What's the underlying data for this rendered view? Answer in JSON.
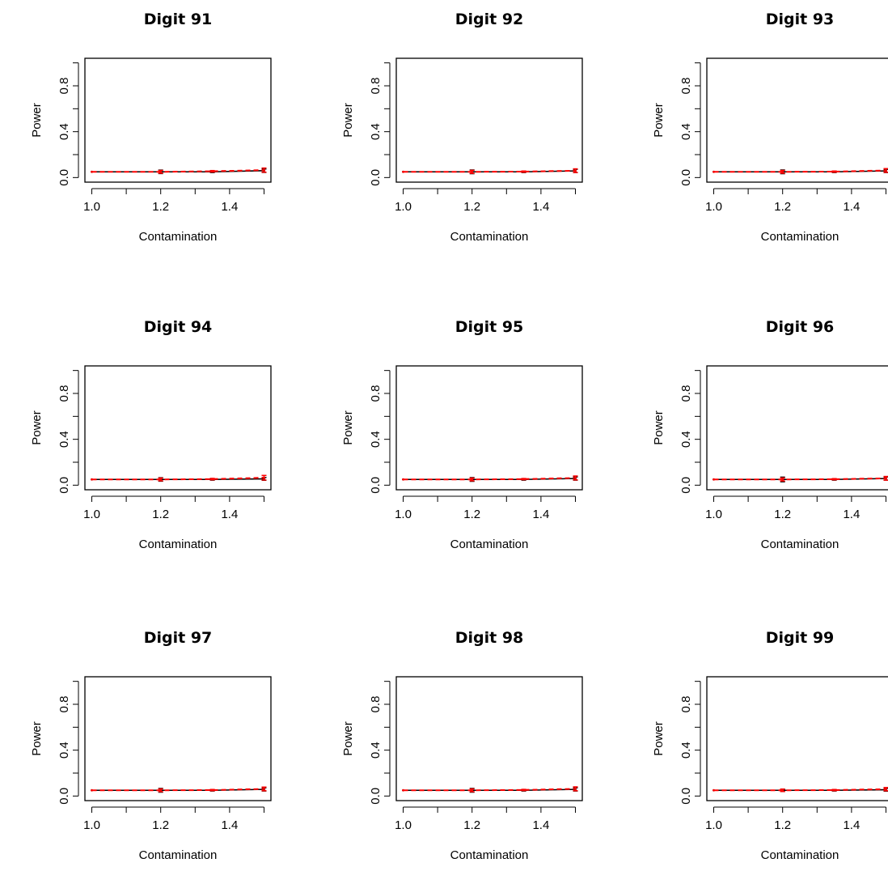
{
  "chart_data": [
    {
      "type": "line",
      "title": "Digit 91",
      "xlabel": "Contamination",
      "ylabel": "Power",
      "xlim": [
        1.0,
        1.5
      ],
      "ylim": [
        0.0,
        1.0
      ],
      "xticks": [
        1.0,
        1.2,
        1.4
      ],
      "yticks": [
        0.0,
        0.4,
        0.8
      ],
      "series": [
        {
          "x": [
            1.0,
            1.2,
            1.35,
            1.5
          ],
          "y": [
            0.05,
            0.05,
            0.05,
            0.06
          ],
          "err": [
            0,
            0.015,
            0.006,
            0.015
          ],
          "color": "#000000",
          "dash": "solid"
        },
        {
          "x": [
            1.0,
            1.2,
            1.35,
            1.5
          ],
          "y": [
            0.05,
            0.05,
            0.055,
            0.065
          ],
          "err": [
            0,
            0.012,
            0.006,
            0.018
          ],
          "color": "#ff0000",
          "dash": "dashed"
        }
      ]
    },
    {
      "type": "line",
      "title": "Digit 92",
      "xlabel": "Contamination",
      "ylabel": "Power",
      "xlim": [
        1.0,
        1.5
      ],
      "ylim": [
        0.0,
        1.0
      ],
      "xticks": [
        1.0,
        1.2,
        1.4
      ],
      "yticks": [
        0.0,
        0.4,
        0.8
      ],
      "series": [
        {
          "x": [
            1.0,
            1.2,
            1.35,
            1.5
          ],
          "y": [
            0.05,
            0.05,
            0.05,
            0.058
          ],
          "err": [
            0,
            0.016,
            0.006,
            0.014
          ],
          "color": "#000000",
          "dash": "solid"
        },
        {
          "x": [
            1.0,
            1.2,
            1.35,
            1.5
          ],
          "y": [
            0.05,
            0.05,
            0.052,
            0.06
          ],
          "err": [
            0,
            0.013,
            0.005,
            0.016
          ],
          "color": "#ff0000",
          "dash": "dashed"
        }
      ]
    },
    {
      "type": "line",
      "title": "Digit 93",
      "xlabel": "Contamination",
      "ylabel": "Power",
      "xlim": [
        1.0,
        1.5
      ],
      "ylim": [
        0.0,
        1.0
      ],
      "xticks": [
        1.0,
        1.2,
        1.4
      ],
      "yticks": [
        0.0,
        0.4,
        0.8
      ],
      "series": [
        {
          "x": [
            1.0,
            1.2,
            1.35,
            1.5
          ],
          "y": [
            0.05,
            0.05,
            0.05,
            0.058
          ],
          "err": [
            0,
            0.016,
            0.006,
            0.014
          ],
          "color": "#000000",
          "dash": "solid"
        },
        {
          "x": [
            1.0,
            1.2,
            1.35,
            1.5
          ],
          "y": [
            0.05,
            0.05,
            0.052,
            0.062
          ],
          "err": [
            0,
            0.012,
            0.005,
            0.016
          ],
          "color": "#ff0000",
          "dash": "dashed"
        }
      ]
    },
    {
      "type": "line",
      "title": "Digit 94",
      "xlabel": "Contamination",
      "ylabel": "Power",
      "xlim": [
        1.0,
        1.5
      ],
      "ylim": [
        0.0,
        1.0
      ],
      "xticks": [
        1.0,
        1.2,
        1.4
      ],
      "yticks": [
        0.0,
        0.4,
        0.8
      ],
      "series": [
        {
          "x": [
            1.0,
            1.2,
            1.35,
            1.5
          ],
          "y": [
            0.05,
            0.05,
            0.05,
            0.055
          ],
          "err": [
            0,
            0.015,
            0.006,
            0.012
          ],
          "color": "#000000",
          "dash": "solid"
        },
        {
          "x": [
            1.0,
            1.2,
            1.35,
            1.5
          ],
          "y": [
            0.05,
            0.05,
            0.053,
            0.065
          ],
          "err": [
            0,
            0.012,
            0.006,
            0.02
          ],
          "color": "#ff0000",
          "dash": "dashed"
        }
      ]
    },
    {
      "type": "line",
      "title": "Digit 95",
      "xlabel": "Contamination",
      "ylabel": "Power",
      "xlim": [
        1.0,
        1.5
      ],
      "ylim": [
        0.0,
        1.0
      ],
      "xticks": [
        1.0,
        1.2,
        1.4
      ],
      "yticks": [
        0.0,
        0.4,
        0.8
      ],
      "series": [
        {
          "x": [
            1.0,
            1.2,
            1.35,
            1.5
          ],
          "y": [
            0.05,
            0.05,
            0.05,
            0.058
          ],
          "err": [
            0,
            0.016,
            0.006,
            0.014
          ],
          "color": "#000000",
          "dash": "solid"
        },
        {
          "x": [
            1.0,
            1.2,
            1.35,
            1.5
          ],
          "y": [
            0.05,
            0.05,
            0.053,
            0.063
          ],
          "err": [
            0,
            0.012,
            0.005,
            0.017
          ],
          "color": "#ff0000",
          "dash": "dashed"
        }
      ]
    },
    {
      "type": "line",
      "title": "Digit 96",
      "xlabel": "Contamination",
      "ylabel": "Power",
      "xlim": [
        1.0,
        1.5
      ],
      "ylim": [
        0.0,
        1.0
      ],
      "xticks": [
        1.0,
        1.2,
        1.4
      ],
      "yticks": [
        0.0,
        0.4,
        0.8
      ],
      "series": [
        {
          "x": [
            1.0,
            1.2,
            1.35,
            1.5
          ],
          "y": [
            0.05,
            0.05,
            0.05,
            0.058
          ],
          "err": [
            0,
            0.02,
            0.006,
            0.014
          ],
          "color": "#000000",
          "dash": "solid"
        },
        {
          "x": [
            1.0,
            1.2,
            1.35,
            1.5
          ],
          "y": [
            0.05,
            0.05,
            0.052,
            0.06
          ],
          "err": [
            0,
            0.013,
            0.005,
            0.016
          ],
          "color": "#ff0000",
          "dash": "dashed"
        }
      ]
    },
    {
      "type": "line",
      "title": "Digit 97",
      "xlabel": "Contamination",
      "ylabel": "Power",
      "xlim": [
        1.0,
        1.5
      ],
      "ylim": [
        0.0,
        1.0
      ],
      "xticks": [
        1.0,
        1.2,
        1.4
      ],
      "yticks": [
        0.0,
        0.4,
        0.8
      ],
      "series": [
        {
          "x": [
            1.0,
            1.2,
            1.35,
            1.5
          ],
          "y": [
            0.05,
            0.05,
            0.05,
            0.058
          ],
          "err": [
            0,
            0.016,
            0.006,
            0.014
          ],
          "color": "#000000",
          "dash": "solid"
        },
        {
          "x": [
            1.0,
            1.2,
            1.35,
            1.5
          ],
          "y": [
            0.05,
            0.05,
            0.052,
            0.062
          ],
          "err": [
            0,
            0.012,
            0.005,
            0.016
          ],
          "color": "#ff0000",
          "dash": "dashed"
        }
      ]
    },
    {
      "type": "line",
      "title": "Digit 98",
      "xlabel": "Contamination",
      "ylabel": "Power",
      "xlim": [
        1.0,
        1.5
      ],
      "ylim": [
        0.0,
        1.0
      ],
      "xticks": [
        1.0,
        1.2,
        1.4
      ],
      "yticks": [
        0.0,
        0.4,
        0.8
      ],
      "series": [
        {
          "x": [
            1.0,
            1.2,
            1.35,
            1.5
          ],
          "y": [
            0.05,
            0.05,
            0.05,
            0.058
          ],
          "err": [
            0,
            0.016,
            0.006,
            0.014
          ],
          "color": "#000000",
          "dash": "solid"
        },
        {
          "x": [
            1.0,
            1.2,
            1.35,
            1.5
          ],
          "y": [
            0.05,
            0.05,
            0.053,
            0.063
          ],
          "err": [
            0,
            0.012,
            0.005,
            0.017
          ],
          "color": "#ff0000",
          "dash": "dashed"
        }
      ]
    },
    {
      "type": "line",
      "title": "Digit 99",
      "xlabel": "Contamination",
      "ylabel": "Power",
      "xlim": [
        1.0,
        1.5
      ],
      "ylim": [
        0.0,
        1.0
      ],
      "xticks": [
        1.0,
        1.2,
        1.4
      ],
      "yticks": [
        0.0,
        0.4,
        0.8
      ],
      "series": [
        {
          "x": [
            1.0,
            1.2,
            1.35,
            1.5
          ],
          "y": [
            0.05,
            0.05,
            0.05,
            0.055
          ],
          "err": [
            0,
            0.01,
            0.006,
            0.012
          ],
          "color": "#000000",
          "dash": "solid"
        },
        {
          "x": [
            1.0,
            1.2,
            1.35,
            1.5
          ],
          "y": [
            0.05,
            0.05,
            0.052,
            0.06
          ],
          "err": [
            0,
            0.01,
            0.005,
            0.014
          ],
          "color": "#ff0000",
          "dash": "dashed"
        }
      ]
    }
  ]
}
